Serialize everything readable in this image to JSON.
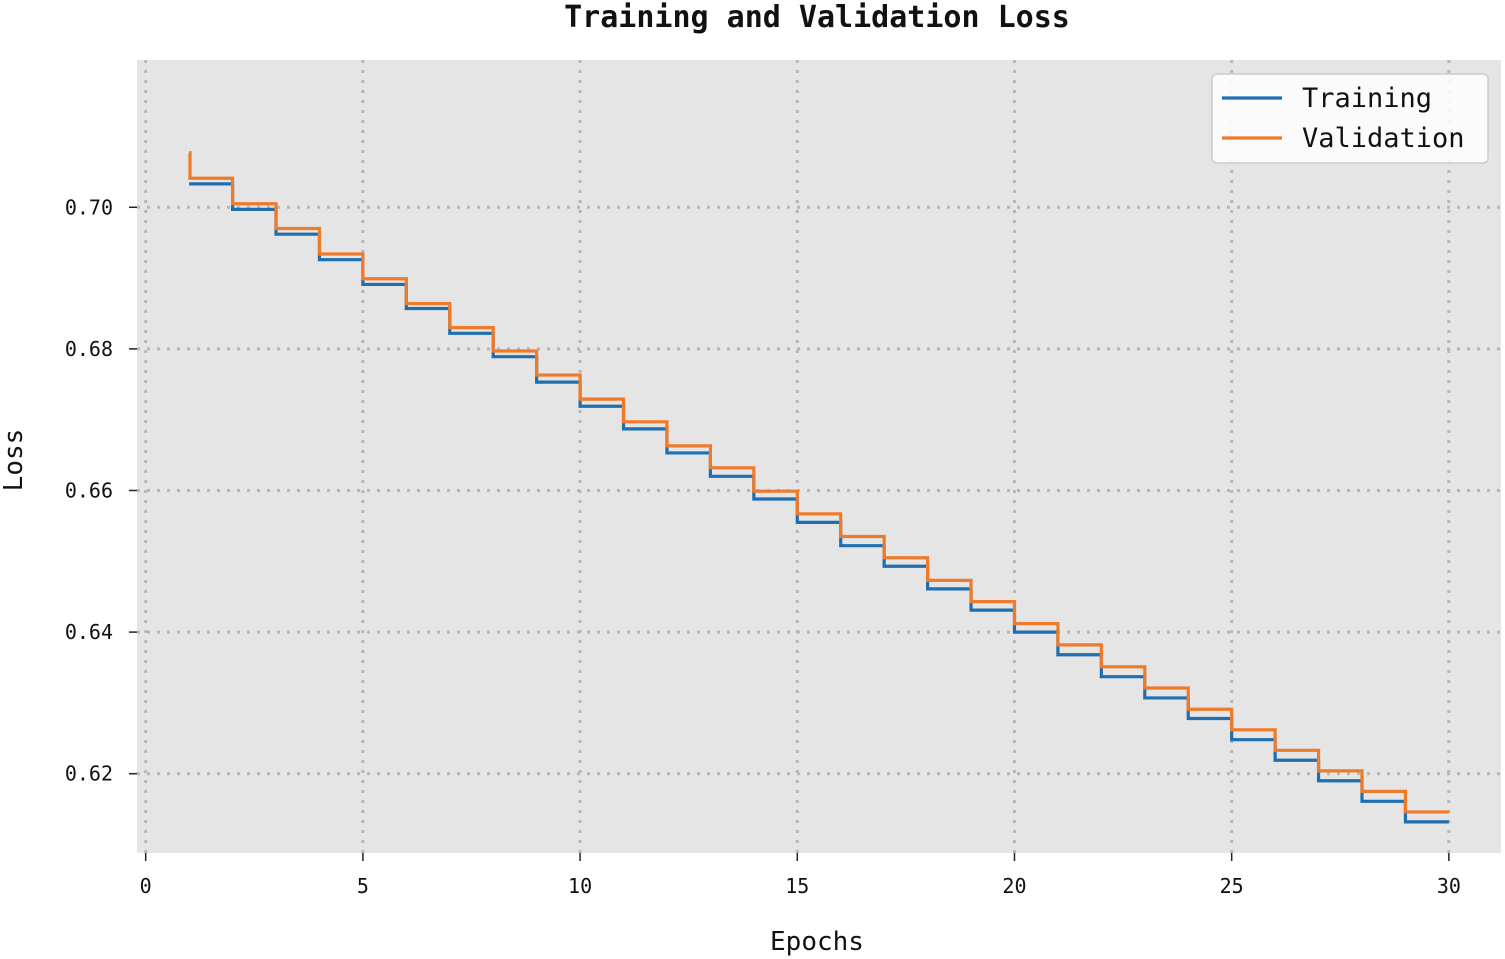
{
  "chart_data": {
    "type": "line",
    "step": "post",
    "title": "Training and Validation Loss",
    "xlabel": "Epochs",
    "ylabel": "Loss",
    "xlim": [
      -0.2,
      31.2
    ],
    "ylim": [
      0.6088,
      0.7208
    ],
    "xticks": [
      0,
      5,
      10,
      15,
      20,
      25,
      30
    ],
    "xtick_labels": [
      "0",
      "5",
      "10",
      "15",
      "20",
      "25",
      "30"
    ],
    "yticks": [
      0.62,
      0.64,
      0.66,
      0.68,
      0.7
    ],
    "ytick_labels": [
      "0.62",
      "0.64",
      "0.66",
      "0.68",
      "0.70"
    ],
    "grid": true,
    "legend_position": "top-right",
    "series": [
      {
        "name": "Training",
        "color": "#1f6fb0",
        "x": [
          1,
          2,
          3,
          4,
          5,
          6,
          7,
          8,
          9,
          10,
          11,
          12,
          13,
          14,
          15,
          16,
          17,
          18,
          19,
          20,
          21,
          22,
          23,
          24,
          25,
          26,
          27,
          28,
          29,
          30
        ],
        "values": [
          0.7033,
          0.6997,
          0.6962,
          0.6926,
          0.6891,
          0.6857,
          0.6822,
          0.6789,
          0.6753,
          0.6719,
          0.6687,
          0.6653,
          0.662,
          0.6588,
          0.6555,
          0.6522,
          0.6493,
          0.6461,
          0.6431,
          0.64,
          0.6368,
          0.6337,
          0.6307,
          0.6278,
          0.6248,
          0.6219,
          0.619,
          0.6161,
          0.6132,
          0.6132
        ]
      },
      {
        "name": "Validation",
        "color": "#ef7a2a",
        "x": [
          1,
          1.02,
          2,
          3,
          4,
          5,
          6,
          7,
          8,
          9,
          10,
          11,
          12,
          13,
          14,
          15,
          16,
          17,
          18,
          19,
          20,
          21,
          22,
          23,
          24,
          25,
          26,
          27,
          28,
          29,
          30
        ],
        "values": [
          0.7077,
          0.7041,
          0.7005,
          0.697,
          0.6934,
          0.6899,
          0.6864,
          0.683,
          0.6797,
          0.6763,
          0.6729,
          0.6697,
          0.6663,
          0.6632,
          0.6599,
          0.6567,
          0.6535,
          0.6505,
          0.6473,
          0.6443,
          0.6412,
          0.6382,
          0.6351,
          0.6321,
          0.6291,
          0.6262,
          0.6233,
          0.6204,
          0.6175,
          0.6146,
          0.6146
        ]
      }
    ]
  }
}
